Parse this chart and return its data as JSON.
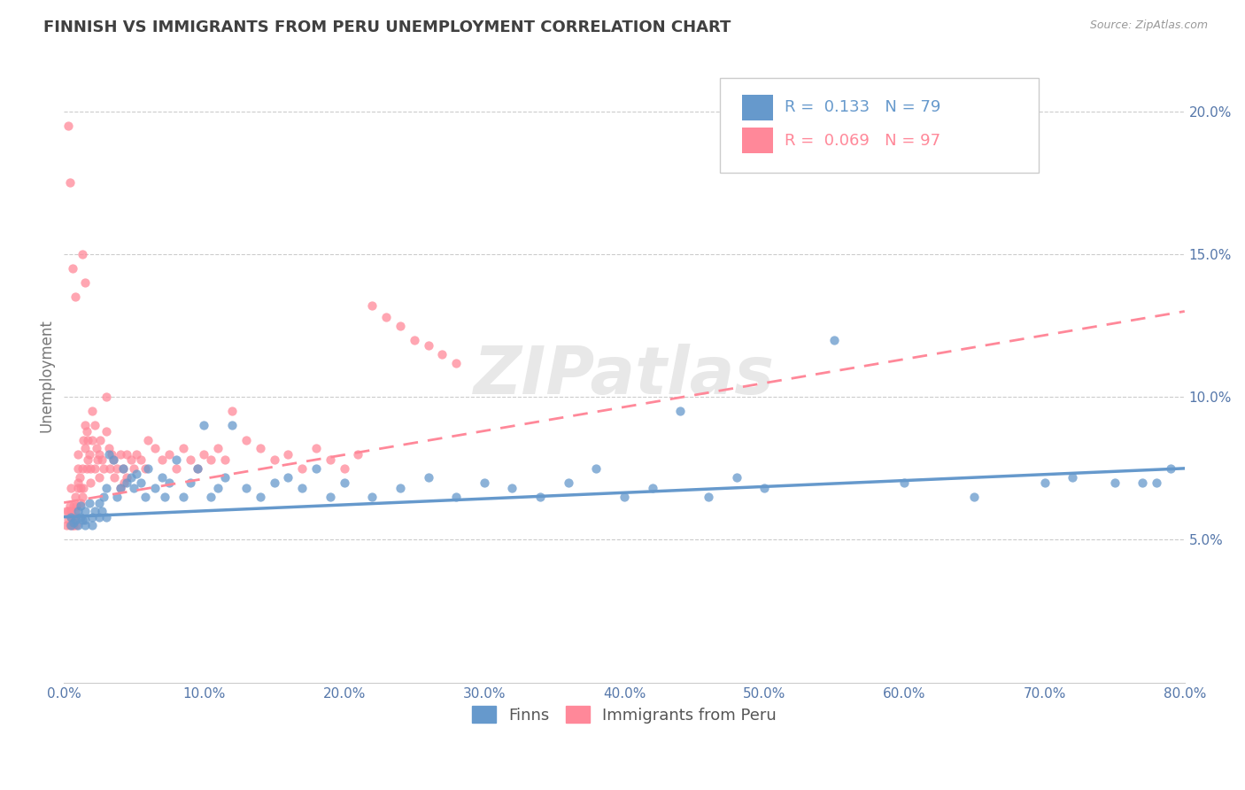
{
  "title": "FINNISH VS IMMIGRANTS FROM PERU UNEMPLOYMENT CORRELATION CHART",
  "source_text": "Source: ZipAtlas.com",
  "ylabel": "Unemployment",
  "x_min": 0.0,
  "x_max": 0.8,
  "y_min": 0.0,
  "y_max": 0.215,
  "y_ticks": [
    0.05,
    0.1,
    0.15,
    0.2
  ],
  "y_tick_labels": [
    "5.0%",
    "10.0%",
    "15.0%",
    "20.0%"
  ],
  "x_ticks": [
    0.0,
    0.1,
    0.2,
    0.3,
    0.4,
    0.5,
    0.6,
    0.7,
    0.8
  ],
  "x_tick_labels": [
    "0.0%",
    "10.0%",
    "20.0%",
    "30.0%",
    "40.0%",
    "50.0%",
    "60.0%",
    "70.0%",
    "80.0%"
  ],
  "blue_color": "#6699CC",
  "pink_color": "#FF8899",
  "legend_R_blue": "0.133",
  "legend_N_blue": "79",
  "legend_R_pink": "0.069",
  "legend_N_pink": "97",
  "legend_label_blue": "Finns",
  "legend_label_pink": "Immigrants from Peru",
  "watermark": "ZIPatlas",
  "background_color": "#ffffff",
  "grid_color": "#cccccc",
  "title_color": "#404040",
  "axis_color": "#5577aa",
  "blue_trend": [
    0.0,
    0.058,
    0.8,
    0.075
  ],
  "pink_trend": [
    0.0,
    0.063,
    0.8,
    0.13
  ],
  "finns_x": [
    0.005,
    0.005,
    0.007,
    0.008,
    0.01,
    0.01,
    0.012,
    0.012,
    0.013,
    0.015,
    0.015,
    0.015,
    0.018,
    0.02,
    0.02,
    0.022,
    0.025,
    0.025,
    0.027,
    0.028,
    0.03,
    0.03,
    0.032,
    0.035,
    0.038,
    0.04,
    0.042,
    0.045,
    0.048,
    0.05,
    0.052,
    0.055,
    0.058,
    0.06,
    0.065,
    0.07,
    0.072,
    0.075,
    0.08,
    0.085,
    0.09,
    0.095,
    0.1,
    0.105,
    0.11,
    0.115,
    0.12,
    0.13,
    0.14,
    0.15,
    0.16,
    0.17,
    0.18,
    0.19,
    0.2,
    0.22,
    0.24,
    0.26,
    0.28,
    0.3,
    0.32,
    0.34,
    0.36,
    0.38,
    0.4,
    0.42,
    0.44,
    0.46,
    0.48,
    0.5,
    0.55,
    0.6,
    0.65,
    0.7,
    0.72,
    0.75,
    0.77,
    0.78,
    0.79
  ],
  "finns_y": [
    0.058,
    0.055,
    0.056,
    0.057,
    0.06,
    0.055,
    0.058,
    0.062,
    0.057,
    0.06,
    0.055,
    0.057,
    0.063,
    0.058,
    0.055,
    0.06,
    0.063,
    0.058,
    0.06,
    0.065,
    0.068,
    0.058,
    0.08,
    0.078,
    0.065,
    0.068,
    0.075,
    0.07,
    0.072,
    0.068,
    0.073,
    0.07,
    0.065,
    0.075,
    0.068,
    0.072,
    0.065,
    0.07,
    0.078,
    0.065,
    0.07,
    0.075,
    0.09,
    0.065,
    0.068,
    0.072,
    0.09,
    0.068,
    0.065,
    0.07,
    0.072,
    0.068,
    0.075,
    0.065,
    0.07,
    0.065,
    0.068,
    0.072,
    0.065,
    0.07,
    0.068,
    0.065,
    0.07,
    0.075,
    0.065,
    0.068,
    0.095,
    0.065,
    0.072,
    0.068,
    0.12,
    0.07,
    0.065,
    0.07,
    0.072,
    0.07,
    0.07,
    0.07,
    0.075
  ],
  "peru_x": [
    0.002,
    0.002,
    0.003,
    0.003,
    0.004,
    0.004,
    0.005,
    0.005,
    0.005,
    0.006,
    0.006,
    0.007,
    0.007,
    0.008,
    0.008,
    0.008,
    0.009,
    0.009,
    0.01,
    0.01,
    0.01,
    0.01,
    0.011,
    0.012,
    0.012,
    0.013,
    0.013,
    0.014,
    0.014,
    0.015,
    0.015,
    0.016,
    0.016,
    0.017,
    0.017,
    0.018,
    0.019,
    0.019,
    0.02,
    0.02,
    0.022,
    0.022,
    0.023,
    0.024,
    0.025,
    0.025,
    0.026,
    0.027,
    0.028,
    0.03,
    0.03,
    0.032,
    0.033,
    0.034,
    0.035,
    0.036,
    0.038,
    0.04,
    0.04,
    0.042,
    0.043,
    0.045,
    0.045,
    0.048,
    0.05,
    0.052,
    0.055,
    0.058,
    0.06,
    0.065,
    0.07,
    0.075,
    0.08,
    0.085,
    0.09,
    0.095,
    0.1,
    0.105,
    0.11,
    0.115,
    0.12,
    0.13,
    0.14,
    0.15,
    0.16,
    0.17,
    0.18,
    0.19,
    0.2,
    0.21,
    0.22,
    0.23,
    0.24,
    0.25,
    0.26,
    0.27,
    0.28
  ],
  "peru_y": [
    0.06,
    0.055,
    0.06,
    0.057,
    0.062,
    0.055,
    0.068,
    0.058,
    0.06,
    0.055,
    0.058,
    0.062,
    0.055,
    0.06,
    0.058,
    0.065,
    0.062,
    0.055,
    0.08,
    0.075,
    0.07,
    0.068,
    0.072,
    0.068,
    0.063,
    0.075,
    0.065,
    0.085,
    0.068,
    0.09,
    0.082,
    0.088,
    0.075,
    0.085,
    0.078,
    0.08,
    0.075,
    0.07,
    0.095,
    0.085,
    0.09,
    0.075,
    0.082,
    0.078,
    0.08,
    0.072,
    0.085,
    0.078,
    0.075,
    0.1,
    0.088,
    0.082,
    0.075,
    0.08,
    0.078,
    0.072,
    0.075,
    0.08,
    0.068,
    0.075,
    0.07,
    0.08,
    0.072,
    0.078,
    0.075,
    0.08,
    0.078,
    0.075,
    0.085,
    0.082,
    0.078,
    0.08,
    0.075,
    0.082,
    0.078,
    0.075,
    0.08,
    0.078,
    0.082,
    0.078,
    0.095,
    0.085,
    0.082,
    0.078,
    0.08,
    0.075,
    0.082,
    0.078,
    0.075,
    0.08,
    0.132,
    0.128,
    0.125,
    0.12,
    0.118,
    0.115,
    0.112
  ],
  "peru_y_outliers": [
    0.195,
    0.175,
    0.145,
    0.135,
    0.15,
    0.14
  ],
  "peru_x_outliers": [
    0.003,
    0.004,
    0.006,
    0.008,
    0.013,
    0.015
  ]
}
